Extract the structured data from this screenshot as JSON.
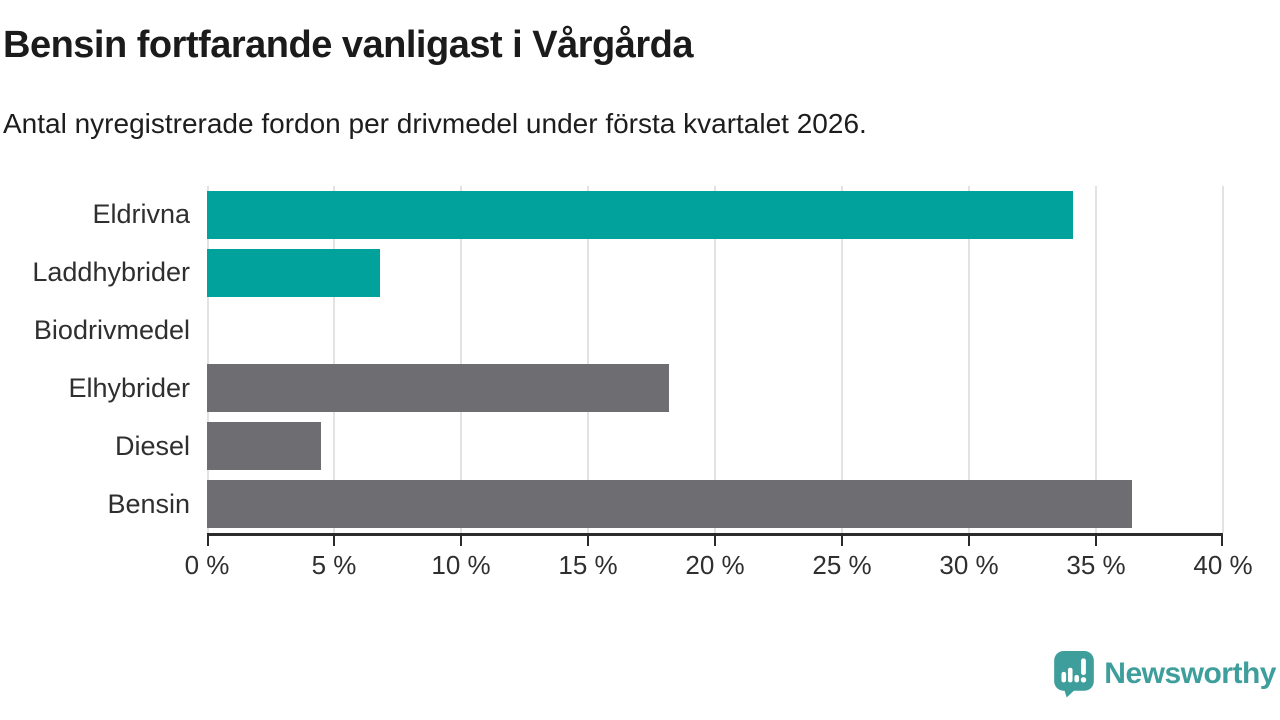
{
  "header": {
    "title": "Bensin fortfarande vanligast i Vårgårda",
    "subtitle": "Antal nyregistrerade fordon per drivmedel under första kvartalet 2026."
  },
  "chart_data": {
    "type": "bar",
    "orientation": "horizontal",
    "categories": [
      "Eldrivna",
      "Laddhybrider",
      "Biodrivmedel",
      "Elhybrider",
      "Diesel",
      "Bensin"
    ],
    "values": [
      34.1,
      6.8,
      0,
      18.2,
      4.5,
      36.4
    ],
    "unit": "%",
    "xlim": [
      0,
      40
    ],
    "x_tick_labels": [
      "0 %",
      "5 %",
      "10 %",
      "15 %",
      "20 %",
      "25 %",
      "30 %",
      "35 %",
      "40 %"
    ],
    "bar_colors": [
      "#00a29b",
      "#00a29b",
      "#00a29b",
      "#6e6e72",
      "#6e6e72",
      "#6e6e72"
    ],
    "highlight_color": "#00a29b",
    "base_color": "#6e6e72",
    "gridline_color": "#e2e2e2",
    "axis_color": "#2b2b2b",
    "grid": true,
    "legend": false,
    "title": "Bensin fortfarande vanligast i Vårgårda",
    "xlabel": "",
    "ylabel": ""
  },
  "footer": {
    "brand": "Newsworthy",
    "brand_color": "#3d9e9b"
  }
}
